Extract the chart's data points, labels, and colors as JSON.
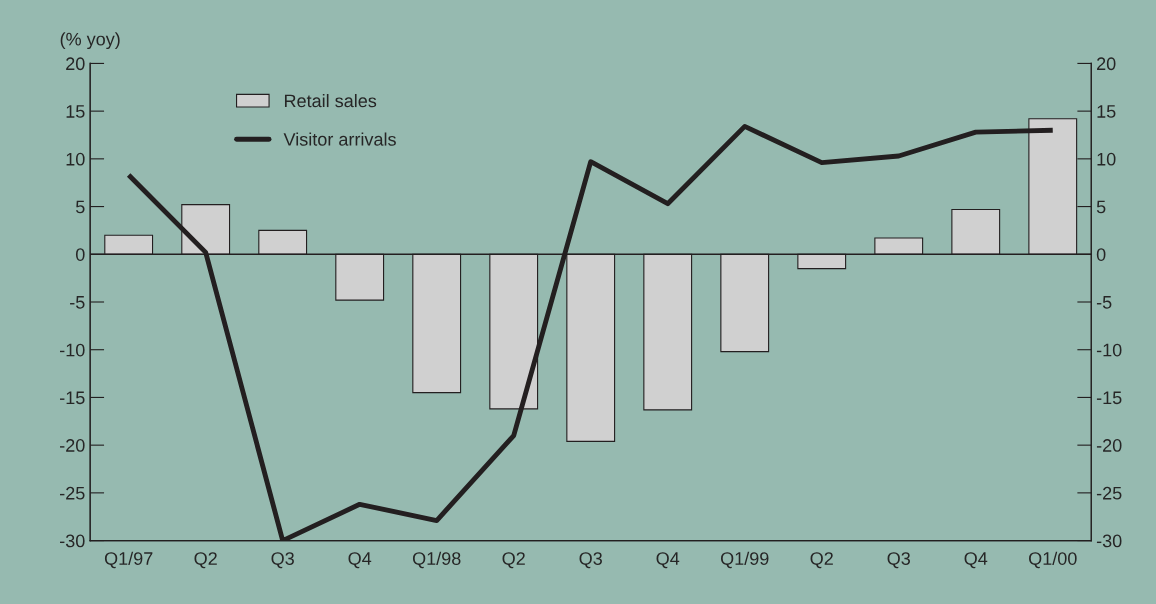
{
  "chart_data": {
    "type": "bar",
    "ylabel": "(% yoy)",
    "categories": [
      "Q1/97",
      "Q2",
      "Q3",
      "Q4",
      "Q1/98",
      "Q2",
      "Q3",
      "Q4",
      "Q1/99",
      "Q2",
      "Q3",
      "Q4",
      "Q1/00"
    ],
    "series": [
      {
        "name": "Retail sales",
        "color": "#d0d0d0",
        "values": [
          2.0,
          5.2,
          2.5,
          -4.8,
          -14.5,
          -16.2,
          -19.6,
          -16.3,
          -10.2,
          -1.5,
          1.7,
          4.7,
          14.2
        ]
      },
      {
        "name": "Visitor arrivals",
        "type": "line",
        "color": "#231f20",
        "values": [
          8.3,
          0.2,
          -30.0,
          -26.2,
          -27.9,
          -19.0,
          9.7,
          5.3,
          13.4,
          9.6,
          10.3,
          12.8,
          13.0
        ]
      }
    ],
    "ylim": [
      -30,
      20
    ],
    "yticks": [
      -30,
      -25,
      -20,
      -15,
      -10,
      -5,
      0,
      5,
      10,
      15,
      20
    ],
    "y2lim": [
      -30,
      20
    ],
    "y2ticks": [
      -30,
      -25,
      -20,
      -15,
      -10,
      -5,
      0,
      5,
      10,
      15,
      20
    ],
    "ref_lines": [
      {
        "axis": "y",
        "value": 0,
        "color": "#231f20"
      }
    ],
    "grid": false,
    "legend": "top left"
  }
}
